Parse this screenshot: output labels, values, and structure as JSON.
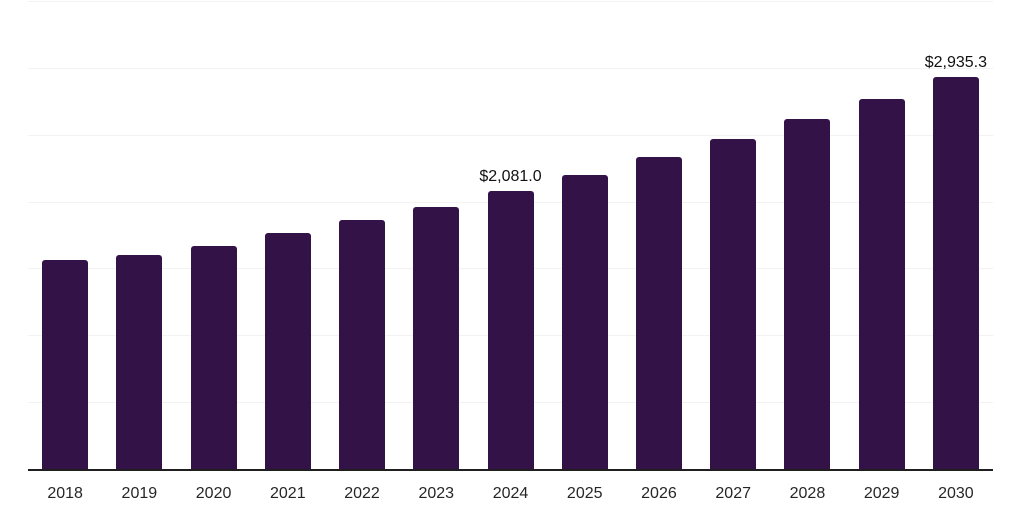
{
  "chart_data": {
    "type": "bar",
    "title": "",
    "xlabel": "",
    "ylabel": "",
    "legend": null,
    "grid": "horizontal",
    "ylim": [
      0,
      3500
    ],
    "gridline_step": 500,
    "categories": [
      "2018",
      "2019",
      "2020",
      "2021",
      "2022",
      "2023",
      "2024",
      "2025",
      "2026",
      "2027",
      "2028",
      "2029",
      "2030"
    ],
    "values": [
      1560,
      1600,
      1670,
      1765,
      1860,
      1960,
      2081.0,
      2200,
      2330,
      2470,
      2615,
      2770,
      2935.3
    ],
    "points": [
      {
        "year": "2018",
        "value": 1560,
        "label": ""
      },
      {
        "year": "2019",
        "value": 1600,
        "label": ""
      },
      {
        "year": "2020",
        "value": 1670,
        "label": ""
      },
      {
        "year": "2021",
        "value": 1765,
        "label": ""
      },
      {
        "year": "2022",
        "value": 1860,
        "label": ""
      },
      {
        "year": "2023",
        "value": 1960,
        "label": ""
      },
      {
        "year": "2024",
        "value": 2081.0,
        "label": "$2,081.0"
      },
      {
        "year": "2025",
        "value": 2200,
        "label": ""
      },
      {
        "year": "2026",
        "value": 2330,
        "label": ""
      },
      {
        "year": "2027",
        "value": 2470,
        "label": ""
      },
      {
        "year": "2028",
        "value": 2615,
        "label": ""
      },
      {
        "year": "2029",
        "value": 2770,
        "label": ""
      },
      {
        "year": "2030",
        "value": 2935.3,
        "label": "$2,935.3"
      }
    ],
    "colors": {
      "bar": "#331247",
      "gridline": "#f2f2f2",
      "axis": "#1f1f1f",
      "tick_text": "#262626",
      "value_label_text": "#111111",
      "background": "#ffffff"
    }
  }
}
